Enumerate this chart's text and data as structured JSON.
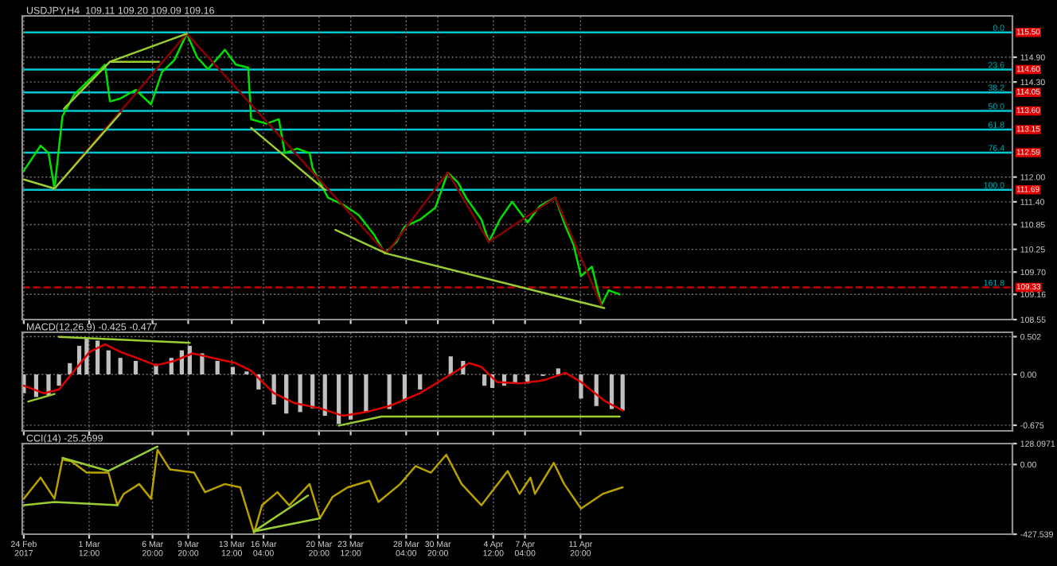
{
  "chart_data": [
    {
      "type": "line",
      "title": "USDJPY,H4  109.11 109.20 109.09 109.16",
      "xlim": [
        "2017-02-23T21:00",
        "2017-05-18T04:00"
      ],
      "xticks": [
        {
          "value": "2017-02-24T00:00",
          "label": null
        },
        {
          "value": "2017-03-01T12:00",
          "label": null
        },
        {
          "value": "2017-03-06T20:00",
          "label": null
        },
        {
          "value": "2017-03-09T20:00",
          "label": null
        },
        {
          "value": "2017-03-13T12:00",
          "label": null
        },
        {
          "value": "2017-03-16T04:00",
          "label": null
        },
        {
          "value": "2017-03-20T20:00",
          "label": null
        },
        {
          "value": "2017-03-23T12:00",
          "label": null
        },
        {
          "value": "2017-03-28T04:00",
          "label": null
        },
        {
          "value": "2017-03-30T20:00",
          "label": null
        },
        {
          "value": "2017-04-04T12:00",
          "label": null
        },
        {
          "value": "2017-04-07T04:00",
          "label": null
        },
        {
          "value": "2017-04-11T20:00",
          "label": null
        }
      ],
      "ylim": [
        108.55,
        115.9
      ],
      "yticks": [
        {
          "value": 114.9,
          "label": "114.90"
        },
        {
          "value": 114.3,
          "label": "114.30"
        },
        {
          "value": 112.0,
          "label": "112.00"
        },
        {
          "value": 111.4,
          "label": "111.40"
        },
        110.85,
        110.25,
        {
          "value": 109.7,
          "label": "109.70"
        },
        109.16,
        108.55
      ],
      "grid": true,
      "tick_labels": "y",
      "ref_lines": [
        {
          "axis": "y",
          "value": 115.5,
          "label": "115.50",
          "color": "#00c8d2",
          "line_style": "solid"
        },
        {
          "axis": "y",
          "value": 114.6,
          "label": "114.60",
          "color": "#00c8d2",
          "line_style": "solid"
        },
        {
          "axis": "y",
          "value": 114.05,
          "label": "114.05",
          "color": "#00c8d2",
          "line_style": "solid"
        },
        {
          "axis": "y",
          "value": 113.6,
          "label": "113.60",
          "color": "#00c8d2",
          "line_style": "solid"
        },
        {
          "axis": "y",
          "value": 113.15,
          "label": "113.15",
          "color": "#00c8d2",
          "line_style": "solid"
        },
        {
          "axis": "y",
          "value": 112.59,
          "label": "112.59",
          "color": "#00c8d2",
          "line_style": "solid"
        },
        {
          "axis": "y",
          "value": 111.69,
          "label": "111.69",
          "color": "#00c8d2",
          "line_style": "solid"
        },
        {
          "axis": "y",
          "value": 109.33,
          "label": "109.33",
          "color": "#c00000",
          "line_style": "dashed"
        }
      ],
      "annotations": [
        {
          "text": "0.0",
          "x": "2017-05-17T12:00",
          "y": 115.5
        },
        {
          "text": "23.6",
          "x": "2017-05-17T12:00",
          "y": 114.6
        },
        {
          "text": "38.2",
          "x": "2017-05-17T12:00",
          "y": 114.05
        },
        {
          "text": "50.0",
          "x": "2017-05-17T12:00",
          "y": 113.6
        },
        {
          "text": "61.8",
          "x": "2017-05-17T12:00",
          "y": 113.15
        },
        {
          "text": "76.4",
          "x": "2017-05-17T12:00",
          "y": 112.59
        },
        {
          "text": "100.0",
          "x": "2017-05-17T12:00",
          "y": 111.69
        },
        {
          "text": "161.8",
          "x": "2017-05-17T12:00",
          "y": 109.33
        }
      ],
      "series": [
        {
          "color": "#00e000",
          "x": [
            "2017-02-24T00:00",
            "2017-02-25T10:00",
            "2017-02-26T02:00",
            "2017-02-26T14:00",
            "2017-02-27T06:00",
            "2017-02-28T06:00",
            "2017-03-01T13:00",
            "2017-03-02T20:00",
            "2017-03-03T06:00",
            "2017-03-04T03:00",
            "2017-03-05T10:00",
            "2017-03-06T17:00",
            "2017-03-07T15:00",
            "2017-03-08T16:00",
            "2017-03-09T17:00",
            "2017-03-10T14:00",
            "2017-03-11T12:00",
            "2017-03-12T22:00",
            "2017-03-13T20:00",
            "2017-03-14T21:00",
            "2017-03-15T03:00",
            "2017-03-16T10:00",
            "2017-03-17T11:00",
            "2017-03-17T23:00",
            "2017-03-19T00:00",
            "2017-03-20T01:00",
            "2017-03-20T07:00",
            "2017-03-21T14:00",
            "2017-03-22T21:00",
            "2017-03-24T04:00",
            "2017-03-25T11:00",
            "2017-03-26T09:00",
            "2017-03-27T09:00",
            "2017-03-28T01:00",
            "2017-03-29T08:00",
            "2017-03-30T15:00",
            "2017-03-31T16:00",
            "2017-04-01T13:00",
            "2017-04-02T05:00",
            "2017-04-03T12:00",
            "2017-04-04T03:00",
            "2017-04-05T01:00",
            "2017-04-06T02:00",
            "2017-04-07T09:00",
            "2017-04-08T10:00",
            "2017-04-09T17:00",
            "2017-04-10T14:00",
            "2017-04-11T06:00",
            "2017-04-11T21:00",
            "2017-04-12T19:00",
            "2017-04-13T14:00",
            "2017-04-14T05:00",
            "2017-04-15T03:00"
          ],
          "values": [
            112.15,
            112.76,
            112.58,
            111.72,
            113.47,
            114.0,
            114.36,
            114.72,
            113.83,
            113.9,
            114.11,
            113.76,
            114.54,
            114.83,
            115.47,
            114.9,
            114.61,
            115.08,
            114.72,
            114.65,
            113.4,
            113.29,
            113.4,
            112.58,
            112.69,
            112.58,
            112.22,
            111.5,
            111.33,
            111.08,
            110.61,
            110.15,
            110.44,
            110.8,
            110.97,
            111.26,
            112.11,
            111.86,
            111.5,
            110.97,
            110.43,
            110.97,
            111.4,
            110.9,
            111.3,
            111.5,
            110.8,
            110.36,
            109.6,
            109.83,
            108.9,
            109.26,
            109.16
          ]
        },
        {
          "color": "#8b0000",
          "x": [
            "2017-02-26T14:00",
            "2017-03-09T17:00",
            "2017-03-26T12:00",
            "2017-03-31T16:00",
            "2017-04-04T03:00",
            "2017-04-09T17:00",
            "2017-04-13T14:00"
          ],
          "values": [
            111.72,
            115.47,
            110.15,
            112.11,
            110.43,
            111.5,
            108.9
          ]
        },
        {
          "color": "#9acd32",
          "x": [
            "2017-02-24T00:00",
            "2017-02-26T14:00",
            "2017-03-04T03:00"
          ],
          "values": [
            111.94,
            111.72,
            113.54
          ]
        },
        {
          "color": "#9acd32",
          "x": [
            "2017-02-27T09:00",
            "2017-03-03T06:00",
            "2017-03-09T17:00"
          ],
          "values": [
            113.65,
            114.79,
            115.47
          ]
        },
        {
          "color": "#9acd32",
          "x": [
            "2017-03-03T06:00",
            "2017-03-07T09:00"
          ],
          "values": [
            114.79,
            114.79
          ]
        },
        {
          "color": "#9acd32",
          "x": [
            "2017-03-15T03:00",
            "2017-03-21T08:00"
          ],
          "values": [
            113.19,
            111.69
          ]
        },
        {
          "color": "#9acd32",
          "x": [
            "2017-03-22T05:00",
            "2017-03-26T12:00",
            "2017-04-13T20:00"
          ],
          "values": [
            110.72,
            110.15,
            108.83
          ]
        }
      ]
    },
    {
      "type": "bar",
      "title": "MACD(12,26,9) -0.425 -0.477",
      "xlim": [
        "2017-02-23T21:00",
        "2017-05-18T04:00"
      ],
      "xticks": [
        {
          "value": "2017-02-24T00:00",
          "label": null
        },
        {
          "value": "2017-03-01T12:00",
          "label": null
        },
        {
          "value": "2017-03-06T20:00",
          "label": null
        },
        {
          "value": "2017-03-09T20:00",
          "label": null
        },
        {
          "value": "2017-03-13T12:00",
          "label": null
        },
        {
          "value": "2017-03-16T04:00",
          "label": null
        },
        {
          "value": "2017-03-20T20:00",
          "label": null
        },
        {
          "value": "2017-03-23T12:00",
          "label": null
        },
        {
          "value": "2017-03-28T04:00",
          "label": null
        },
        {
          "value": "2017-03-30T20:00",
          "label": null
        },
        {
          "value": "2017-04-04T12:00",
          "label": null
        },
        {
          "value": "2017-04-07T04:00",
          "label": null
        },
        {
          "value": "2017-04-11T20:00",
          "label": null
        }
      ],
      "ylim": [
        -0.75,
        0.56
      ],
      "yticks": [
        0.502,
        {
          "value": 0,
          "label": "0.00"
        },
        -0.675
      ],
      "grid": true,
      "tick_labels": "y",
      "series": [
        {
          "color": "#c0c0c0",
          "x": [
            "2017-02-24T00:00",
            "2017-02-25T01:00",
            "2017-02-26T02:00",
            "2017-02-26T23:00",
            "2017-02-27T21:00",
            "2017-02-28T16:00",
            "2017-03-01T07:00",
            "2017-03-02T05:00",
            "2017-03-03T03:00",
            "2017-03-04T03:00",
            "2017-03-05T10:00",
            "2017-03-07T03:00",
            "2017-03-08T10:00",
            "2017-03-09T07:00",
            "2017-03-09T23:00",
            "2017-03-11T00:00",
            "2017-03-12T07:00",
            "2017-03-13T14:00",
            "2017-03-14T18:00",
            "2017-03-15T18:00",
            "2017-03-17T01:00",
            "2017-03-18T02:00",
            "2017-03-19T06:00",
            "2017-03-20T07:00",
            "2017-03-21T08:00",
            "2017-03-22T12:00",
            "2017-03-23T12:00",
            "2017-03-24T19:00",
            "2017-03-26T18:00",
            "2017-03-28T01:00",
            "2017-03-29T08:00",
            "2017-03-30T15:00",
            "2017-03-31T22:00",
            "2017-04-01T23:00",
            "2017-04-02T20:00",
            "2017-04-03T18:00",
            "2017-04-04T10:00",
            "2017-04-05T10:00",
            "2017-04-06T08:00",
            "2017-04-07T09:00",
            "2017-04-08T16:00",
            "2017-04-09T23:00",
            "2017-04-10T21:00",
            "2017-04-11T21:00",
            "2017-04-13T04:00",
            "2017-04-14T11:00",
            "2017-04-15T09:00"
          ],
          "values": [
            -0.25,
            -0.3,
            -0.28,
            -0.15,
            0.15,
            0.38,
            0.48,
            0.45,
            0.32,
            0.22,
            0.18,
            0.14,
            0.22,
            0.32,
            0.38,
            0.28,
            0.18,
            0.1,
            0.04,
            -0.2,
            -0.4,
            -0.52,
            -0.5,
            -0.45,
            -0.55,
            -0.66,
            -0.6,
            -0.5,
            -0.46,
            -0.35,
            -0.2,
            0.0,
            0.24,
            0.18,
            0.0,
            -0.15,
            -0.18,
            -0.15,
            -0.12,
            -0.12,
            -0.02,
            0.08,
            0.0,
            -0.32,
            -0.42,
            -0.46,
            -0.48
          ]
        },
        {
          "type": "line",
          "color": "#e00000",
          "x": [
            "2017-02-24T00:00",
            "2017-02-25T16:00",
            "2017-02-26T23:00",
            "2017-02-28T06:00",
            "2017-03-01T13:00",
            "2017-03-02T20:00",
            "2017-03-04T03:00",
            "2017-03-05T20:00",
            "2017-03-07T03:00",
            "2017-03-08T16:00",
            "2017-03-10T05:00",
            "2017-03-11T21:00",
            "2017-03-13T20:00",
            "2017-03-15T03:00",
            "2017-03-17T01:00",
            "2017-03-18T18:00",
            "2017-03-20T22:00",
            "2017-03-22T21:00",
            "2017-03-24T19:00",
            "2017-03-26T18:00",
            "2017-03-29T08:00",
            "2017-03-31T22:00",
            "2017-04-02T11:00",
            "2017-04-03T12:00",
            "2017-04-04T19:00",
            "2017-04-06T17:00",
            "2017-04-08T16:00",
            "2017-04-10T14:00",
            "2017-04-11T21:00",
            "2017-04-13T20:00",
            "2017-04-15T09:00"
          ],
          "values": [
            -0.15,
            -0.25,
            -0.2,
            0.05,
            0.3,
            0.4,
            0.3,
            0.2,
            0.12,
            0.18,
            0.28,
            0.22,
            0.15,
            0.05,
            -0.25,
            -0.38,
            -0.45,
            -0.55,
            -0.5,
            -0.42,
            -0.25,
            0.0,
            0.15,
            0.1,
            -0.1,
            -0.12,
            -0.08,
            0.02,
            -0.1,
            -0.35,
            -0.48
          ]
        },
        {
          "type": "line",
          "color": "#9acd32",
          "x": [
            "2017-02-24T09:00",
            "2017-02-26T14:00"
          ],
          "values": [
            -0.36,
            -0.26
          ]
        },
        {
          "type": "line",
          "color": "#9acd32",
          "x": [
            "2017-02-26T23:00",
            "2017-03-09T23:00"
          ],
          "values": [
            0.5,
            0.42
          ]
        },
        {
          "type": "line",
          "color": "#9acd32",
          "x": [
            "2017-03-22T12:00",
            "2017-03-26T02:00",
            "2017-04-15T03:00"
          ],
          "values": [
            -0.68,
            -0.56,
            -0.56
          ]
        }
      ]
    },
    {
      "type": "line",
      "title": "CCI(14) -25.2699",
      "xlim": [
        "2017-02-23T21:00",
        "2017-05-18T04:00"
      ],
      "xticks": [
        {
          "value": "2017-02-24T00:00",
          "label": "24 Feb 2017"
        },
        {
          "value": "2017-03-01T12:00",
          "label": "1 Mar 12:00"
        },
        {
          "value": "2017-03-06T20:00",
          "label": "6 Mar 20:00"
        },
        {
          "value": "2017-03-09T20:00",
          "label": "9 Mar 20:00"
        },
        {
          "value": "2017-03-13T12:00",
          "label": "13 Mar 12:00"
        },
        {
          "value": "2017-03-16T04:00",
          "label": "16 Mar 04:00"
        },
        {
          "value": "2017-03-20T20:00",
          "label": "20 Mar 20:00"
        },
        {
          "value": "2017-03-23T12:00",
          "label": "23 Mar 12:00"
        },
        {
          "value": "2017-03-28T04:00",
          "label": "28 Mar 04:00"
        },
        {
          "value": "2017-03-30T20:00",
          "label": "30 Mar 20:00"
        },
        {
          "value": "2017-04-04T12:00",
          "label": "4 Apr 12:00"
        },
        {
          "value": "2017-04-07T04:00",
          "label": "7 Apr 04:00"
        },
        {
          "value": "2017-04-11T20:00",
          "label": "11 Apr 20:00"
        }
      ],
      "ylim": [
        -427.539,
        128.0971
      ],
      "yticks": [
        128.0971,
        {
          "value": 0,
          "label": "0.00"
        },
        -427.539
      ],
      "grid": true,
      "series": [
        {
          "color": "#b8a000",
          "x": [
            "2017-02-24T00:00",
            "2017-02-25T10:00",
            "2017-02-26T14:00",
            "2017-02-27T06:00",
            "2017-02-28T00:00",
            "2017-03-01T07:00",
            "2017-03-03T03:00",
            "2017-03-03T21:00",
            "2017-03-04T10:00",
            "2017-03-05T17:00",
            "2017-03-06T17:00",
            "2017-03-07T06:00",
            "2017-03-08T07:00",
            "2017-03-10T08:00",
            "2017-03-11T06:00",
            "2017-03-12T22:00",
            "2017-03-14T05:00",
            "2017-03-15T09:00",
            "2017-03-16T01:00",
            "2017-03-17T08:00",
            "2017-03-18T08:00",
            "2017-03-20T01:00",
            "2017-03-20T22:00",
            "2017-03-21T23:00",
            "2017-03-23T06:00",
            "2017-03-25T02:00",
            "2017-03-25T20:00",
            "2017-03-27T16:00",
            "2017-03-28T23:00",
            "2017-03-30T06:00",
            "2017-03-31T13:00",
            "2017-04-01T20:00",
            "2017-04-03T12:00",
            "2017-04-05T17:00",
            "2017-04-06T17:00",
            "2017-04-07T15:00",
            "2017-04-08T00:00",
            "2017-04-09T14:00",
            "2017-04-10T11:00",
            "2017-04-11T21:00",
            "2017-04-13T17:00",
            "2017-04-15T09:00"
          ],
          "values": [
            -210,
            -80,
            -210,
            30,
            20,
            -50,
            -50,
            -250,
            -180,
            -120,
            -210,
            90,
            -30,
            -50,
            -170,
            -120,
            -140,
            -420,
            -250,
            -170,
            -250,
            -120,
            -330,
            -200,
            -140,
            -100,
            -230,
            -120,
            -10,
            -50,
            60,
            -120,
            -250,
            -40,
            -180,
            -80,
            -180,
            10,
            -120,
            -270,
            -180,
            -140
          ]
        },
        {
          "color": "#9acd32",
          "x": [
            "2017-02-24T00:00",
            "2017-02-26T14:00",
            "2017-03-03T21:00"
          ],
          "values": [
            -250,
            -230,
            -250
          ]
        },
        {
          "color": "#9acd32",
          "x": [
            "2017-02-27T06:00",
            "2017-03-03T03:00",
            "2017-03-07T06:00"
          ],
          "values": [
            40,
            -40,
            110
          ]
        },
        {
          "color": "#9acd32",
          "x": [
            "2017-03-15T09:00",
            "2017-03-19T22:00"
          ],
          "values": [
            -410,
            -190
          ]
        },
        {
          "color": "#9acd32",
          "x": [
            "2017-03-15T09:00",
            "2017-03-20T22:00"
          ],
          "values": [
            -410,
            -330
          ]
        }
      ]
    }
  ]
}
